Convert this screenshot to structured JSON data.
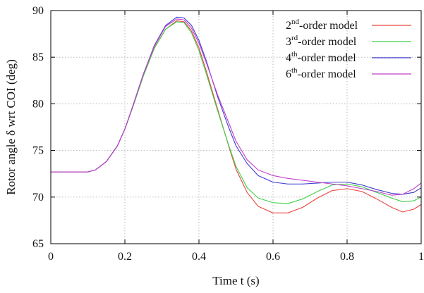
{
  "chart_data": {
    "type": "line",
    "xlabel": "Time t (s)",
    "ylabel": "Rotor angle δ wrt COI (deg)",
    "xlim": [
      0,
      1
    ],
    "ylim": [
      65,
      90
    ],
    "x_ticks": [
      "0",
      "0.2",
      "0.4",
      "0.6",
      "0.8",
      "1"
    ],
    "y_ticks": [
      "65",
      "70",
      "75",
      "80",
      "85",
      "90"
    ],
    "grid": true,
    "legend_position": "top-right",
    "legend": [
      {
        "sup": "nd",
        "label": "2nd-order model",
        "color": "#e8463f"
      },
      {
        "sup": "rd",
        "label": "3rd-order model",
        "color": "#3dcf4a"
      },
      {
        "sup": "th",
        "label": "4th-order model",
        "color": "#3a3acf"
      },
      {
        "sup": "th",
        "label": "6th-order model",
        "color": "#c040c8"
      }
    ],
    "series": [
      {
        "name": "2nd-order model",
        "color": "#e8463f",
        "points": [
          [
            0,
            72.7
          ],
          [
            0.1,
            72.7
          ],
          [
            0.12,
            72.9
          ],
          [
            0.15,
            73.8
          ],
          [
            0.18,
            75.5
          ],
          [
            0.2,
            77.3
          ],
          [
            0.22,
            79.5
          ],
          [
            0.25,
            83.0
          ],
          [
            0.28,
            86.0
          ],
          [
            0.31,
            88.0
          ],
          [
            0.34,
            88.9
          ],
          [
            0.36,
            88.8
          ],
          [
            0.38,
            87.8
          ],
          [
            0.4,
            86.0
          ],
          [
            0.42,
            83.5
          ],
          [
            0.45,
            79.5
          ],
          [
            0.48,
            75.5
          ],
          [
            0.5,
            73.0
          ],
          [
            0.53,
            70.5
          ],
          [
            0.56,
            69.0
          ],
          [
            0.6,
            68.3
          ],
          [
            0.64,
            68.3
          ],
          [
            0.68,
            68.9
          ],
          [
            0.72,
            69.9
          ],
          [
            0.76,
            70.7
          ],
          [
            0.8,
            70.9
          ],
          [
            0.84,
            70.6
          ],
          [
            0.88,
            69.8
          ],
          [
            0.92,
            68.9
          ],
          [
            0.95,
            68.4
          ],
          [
            0.98,
            68.7
          ],
          [
            1.0,
            69.2
          ]
        ]
      },
      {
        "name": "3rd-order model",
        "color": "#3dcf4a",
        "points": [
          [
            0,
            72.7
          ],
          [
            0.1,
            72.7
          ],
          [
            0.12,
            72.9
          ],
          [
            0.15,
            73.8
          ],
          [
            0.18,
            75.5
          ],
          [
            0.2,
            77.3
          ],
          [
            0.22,
            79.5
          ],
          [
            0.25,
            83.0
          ],
          [
            0.28,
            86.0
          ],
          [
            0.31,
            88.0
          ],
          [
            0.34,
            88.8
          ],
          [
            0.36,
            88.7
          ],
          [
            0.38,
            87.6
          ],
          [
            0.4,
            85.7
          ],
          [
            0.42,
            83.2
          ],
          [
            0.45,
            79.3
          ],
          [
            0.48,
            75.6
          ],
          [
            0.5,
            73.3
          ],
          [
            0.53,
            71.0
          ],
          [
            0.56,
            69.9
          ],
          [
            0.6,
            69.4
          ],
          [
            0.64,
            69.3
          ],
          [
            0.68,
            69.8
          ],
          [
            0.72,
            70.6
          ],
          [
            0.76,
            71.3
          ],
          [
            0.8,
            71.4
          ],
          [
            0.84,
            71.1
          ],
          [
            0.88,
            70.5
          ],
          [
            0.92,
            69.9
          ],
          [
            0.95,
            69.5
          ],
          [
            0.98,
            69.6
          ],
          [
            1.0,
            70.0
          ]
        ]
      },
      {
        "name": "4th-order model",
        "color": "#3a3acf",
        "points": [
          [
            0,
            72.7
          ],
          [
            0.1,
            72.7
          ],
          [
            0.12,
            72.9
          ],
          [
            0.15,
            73.8
          ],
          [
            0.18,
            75.5
          ],
          [
            0.2,
            77.3
          ],
          [
            0.22,
            79.6
          ],
          [
            0.25,
            83.2
          ],
          [
            0.28,
            86.3
          ],
          [
            0.31,
            88.4
          ],
          [
            0.34,
            89.3
          ],
          [
            0.36,
            89.2
          ],
          [
            0.38,
            88.4
          ],
          [
            0.4,
            86.8
          ],
          [
            0.42,
            84.6
          ],
          [
            0.45,
            80.8
          ],
          [
            0.48,
            77.5
          ],
          [
            0.5,
            75.5
          ],
          [
            0.53,
            73.6
          ],
          [
            0.56,
            72.3
          ],
          [
            0.6,
            71.6
          ],
          [
            0.64,
            71.4
          ],
          [
            0.68,
            71.4
          ],
          [
            0.72,
            71.5
          ],
          [
            0.76,
            71.6
          ],
          [
            0.8,
            71.6
          ],
          [
            0.84,
            71.3
          ],
          [
            0.88,
            70.8
          ],
          [
            0.92,
            70.4
          ],
          [
            0.95,
            70.3
          ],
          [
            0.98,
            70.5
          ],
          [
            1.0,
            71.0
          ]
        ]
      },
      {
        "name": "6th-order model",
        "color": "#c040c8",
        "points": [
          [
            0,
            72.7
          ],
          [
            0.1,
            72.7
          ],
          [
            0.12,
            72.9
          ],
          [
            0.15,
            73.8
          ],
          [
            0.18,
            75.5
          ],
          [
            0.2,
            77.3
          ],
          [
            0.22,
            79.6
          ],
          [
            0.25,
            83.2
          ],
          [
            0.28,
            86.2
          ],
          [
            0.31,
            88.3
          ],
          [
            0.34,
            89.1
          ],
          [
            0.36,
            89.0
          ],
          [
            0.38,
            88.1
          ],
          [
            0.4,
            86.5
          ],
          [
            0.42,
            84.4
          ],
          [
            0.45,
            81.0
          ],
          [
            0.48,
            78.0
          ],
          [
            0.5,
            76.0
          ],
          [
            0.53,
            74.0
          ],
          [
            0.56,
            72.9
          ],
          [
            0.6,
            72.3
          ],
          [
            0.64,
            72.0
          ],
          [
            0.68,
            71.8
          ],
          [
            0.72,
            71.6
          ],
          [
            0.76,
            71.4
          ],
          [
            0.8,
            71.2
          ],
          [
            0.84,
            70.9
          ],
          [
            0.88,
            70.6
          ],
          [
            0.92,
            70.2
          ],
          [
            0.95,
            70.3
          ],
          [
            0.98,
            70.9
          ],
          [
            1.0,
            71.5
          ]
        ]
      }
    ]
  }
}
